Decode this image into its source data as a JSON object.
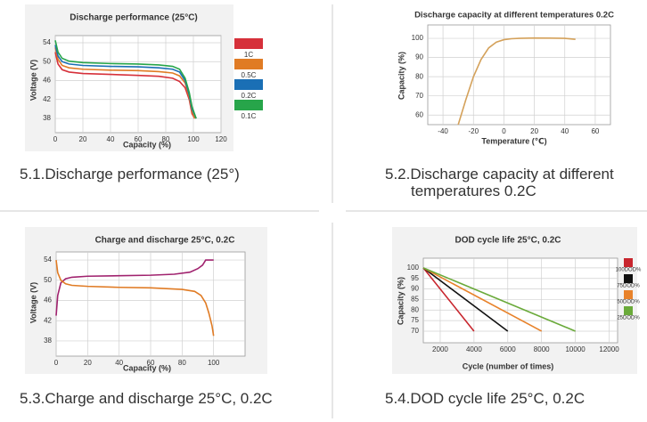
{
  "chart_data": [
    {
      "type": "line",
      "title": "Discharge performance (25°C)",
      "xlabel": "Capacity (%)",
      "ylabel": "Voltage (V)",
      "caption": "5.1.Discharge performance (25°)",
      "xlim": [
        0,
        120
      ],
      "ylim": [
        35,
        55.5
      ],
      "xticks": [
        0,
        20,
        40,
        60,
        80,
        100,
        120
      ],
      "yticks": [
        38,
        42,
        46,
        50,
        54
      ],
      "grid": true,
      "legend": "right",
      "series": [
        {
          "name": "1C",
          "color": "#d6303a",
          "x": [
            0,
            2,
            5,
            10,
            20,
            40,
            60,
            75,
            85,
            90,
            94,
            97,
            99,
            101
          ],
          "values": [
            52,
            49.5,
            48.3,
            47.8,
            47.5,
            47.3,
            47.1,
            46.9,
            46.5,
            45.8,
            44.5,
            42,
            39,
            38
          ]
        },
        {
          "name": "0.5C",
          "color": "#e07b24",
          "x": [
            0,
            2,
            5,
            10,
            20,
            40,
            60,
            75,
            85,
            90,
            94,
            97,
            99,
            101
          ],
          "values": [
            53,
            50.5,
            49.2,
            48.7,
            48.4,
            48.2,
            48.1,
            47.9,
            47.6,
            47,
            45.5,
            42.5,
            39.5,
            38
          ]
        },
        {
          "name": "0.2C",
          "color": "#1a6fb5",
          "x": [
            0,
            2,
            5,
            10,
            20,
            40,
            60,
            75,
            85,
            90,
            94,
            97,
            99,
            102
          ],
          "values": [
            53.5,
            51.2,
            50,
            49.5,
            49.2,
            49,
            48.9,
            48.7,
            48.4,
            47.8,
            46,
            43,
            40,
            38
          ]
        },
        {
          "name": "0.1C",
          "color": "#27a54a",
          "x": [
            0,
            2,
            5,
            10,
            20,
            40,
            60,
            75,
            85,
            90,
            94,
            97,
            99,
            102
          ],
          "values": [
            54.5,
            52,
            50.7,
            50.1,
            49.8,
            49.6,
            49.5,
            49.3,
            49,
            48.4,
            46.5,
            43.5,
            40.5,
            38
          ]
        }
      ]
    },
    {
      "type": "line",
      "title": "Discharge capacity at different temperatures 0.2C",
      "xlabel": "Temperature (℃)",
      "ylabel": "Capacity (%)",
      "caption": "5.2.Discharge capacity at different temperatures 0.2C",
      "xlim": [
        -50,
        70
      ],
      "ylim": [
        55,
        107
      ],
      "xticks": [
        -40,
        -20,
        0,
        20,
        40,
        60
      ],
      "yticks": [
        60,
        70,
        80,
        90,
        100
      ],
      "grid": true,
      "series": [
        {
          "color": "#d4a15a",
          "x": [
            -30,
            -25,
            -20,
            -15,
            -10,
            -5,
            0,
            5,
            10,
            20,
            30,
            40,
            47
          ],
          "values": [
            55,
            68,
            80,
            89,
            95,
            98,
            99.3,
            99.8,
            100,
            100.2,
            100.1,
            100,
            99.5
          ]
        }
      ]
    },
    {
      "type": "line",
      "title": "Charge and discharge 25°C, 0.2C",
      "xlabel": "Capacity (%)",
      "ylabel": "Voltage (V)",
      "caption": "5.3.Charge and discharge 25°C, 0.2C",
      "xlim": [
        0,
        120
      ],
      "ylim": [
        35,
        55.6
      ],
      "xticks": [
        0,
        20,
        40,
        60,
        80,
        100
      ],
      "yticks": [
        38,
        42,
        46,
        50,
        54
      ],
      "grid": true,
      "series": [
        {
          "color": "#a0226e",
          "x": [
            0,
            1,
            3,
            6,
            10,
            20,
            40,
            60,
            75,
            85,
            90,
            93,
            95,
            100
          ],
          "values": [
            43,
            47,
            49.5,
            50.3,
            50.6,
            50.8,
            50.9,
            51,
            51.2,
            51.6,
            52.3,
            53,
            54,
            54
          ]
        },
        {
          "color": "#e07b24",
          "x": [
            0,
            1,
            3,
            6,
            10,
            20,
            40,
            60,
            80,
            88,
            92,
            95,
            97,
            99,
            100
          ],
          "values": [
            54,
            51.5,
            50,
            49.3,
            49,
            48.8,
            48.6,
            48.5,
            48.2,
            47.8,
            47,
            45.5,
            43.5,
            41,
            39
          ]
        }
      ]
    },
    {
      "type": "line",
      "title": "DOD cycle life 25°C, 0.2C",
      "xlabel": "Cycle (number of times)",
      "ylabel": "Capacity (%)",
      "caption": "5.4.DOD cycle life 25°C, 0.2C",
      "xlim": [
        1000,
        12500
      ],
      "ylim": [
        64.5,
        104.6
      ],
      "xticks": [
        2000,
        4000,
        6000,
        8000,
        10000,
        12000
      ],
      "yticks": [
        70,
        75,
        80,
        85,
        90,
        95,
        100
      ],
      "grid": true,
      "legend": "right",
      "series": [
        {
          "name": "100DOD%",
          "color": "#c8262e",
          "x": [
            1000,
            4000
          ],
          "values": [
            100,
            70
          ]
        },
        {
          "name": "75DOD%",
          "color": "#111111",
          "x": [
            1000,
            6000
          ],
          "values": [
            100,
            70
          ]
        },
        {
          "name": "50DOD%",
          "color": "#e8822a",
          "x": [
            1000,
            8000
          ],
          "values": [
            100,
            70
          ]
        },
        {
          "name": "25DOD%",
          "color": "#6aaa3a",
          "x": [
            1000,
            10000
          ],
          "values": [
            100,
            70
          ]
        }
      ]
    }
  ]
}
